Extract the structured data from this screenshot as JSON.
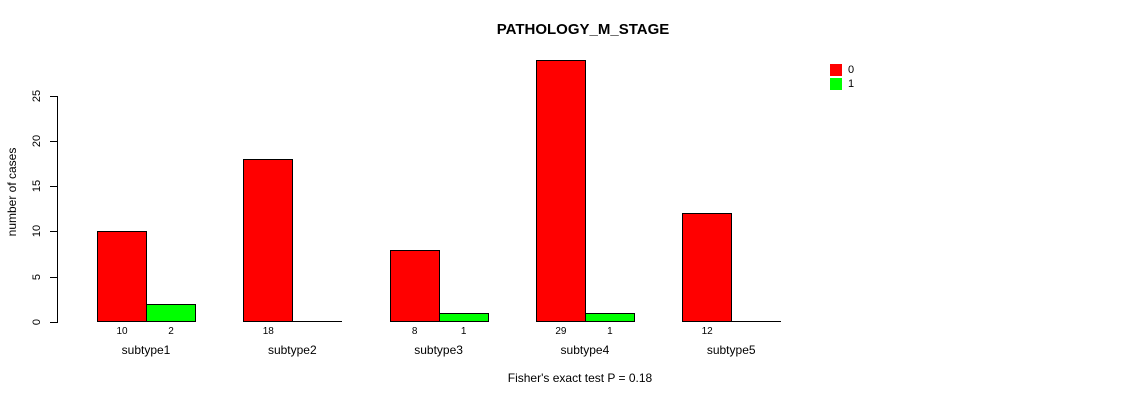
{
  "chart_data": {
    "type": "bar",
    "title": "PATHOLOGY_M_STAGE",
    "ylabel": "number of cases",
    "xlabel": "",
    "annotation": "Fisher's exact test P = 0.18",
    "categories": [
      "subtype1",
      "subtype2",
      "subtype3",
      "subtype4",
      "subtype5"
    ],
    "series": [
      {
        "name": "0",
        "color": "#ff0000",
        "values": [
          10,
          18,
          8,
          29,
          12
        ]
      },
      {
        "name": "1",
        "color": "#00ff00",
        "values": [
          2,
          0,
          1,
          1,
          0
        ]
      }
    ],
    "value_labels": [
      [
        "10",
        "2"
      ],
      [
        "18",
        ""
      ],
      [
        "8",
        "1"
      ],
      [
        "29",
        "1"
      ],
      [
        "12",
        ""
      ]
    ],
    "yticks": [
      0,
      5,
      10,
      15,
      20,
      25
    ],
    "ylim": [
      0,
      29
    ],
    "grid": false,
    "legend_position": "top-right",
    "bar_border_color": "#000000",
    "background_color": "#ffffff"
  }
}
